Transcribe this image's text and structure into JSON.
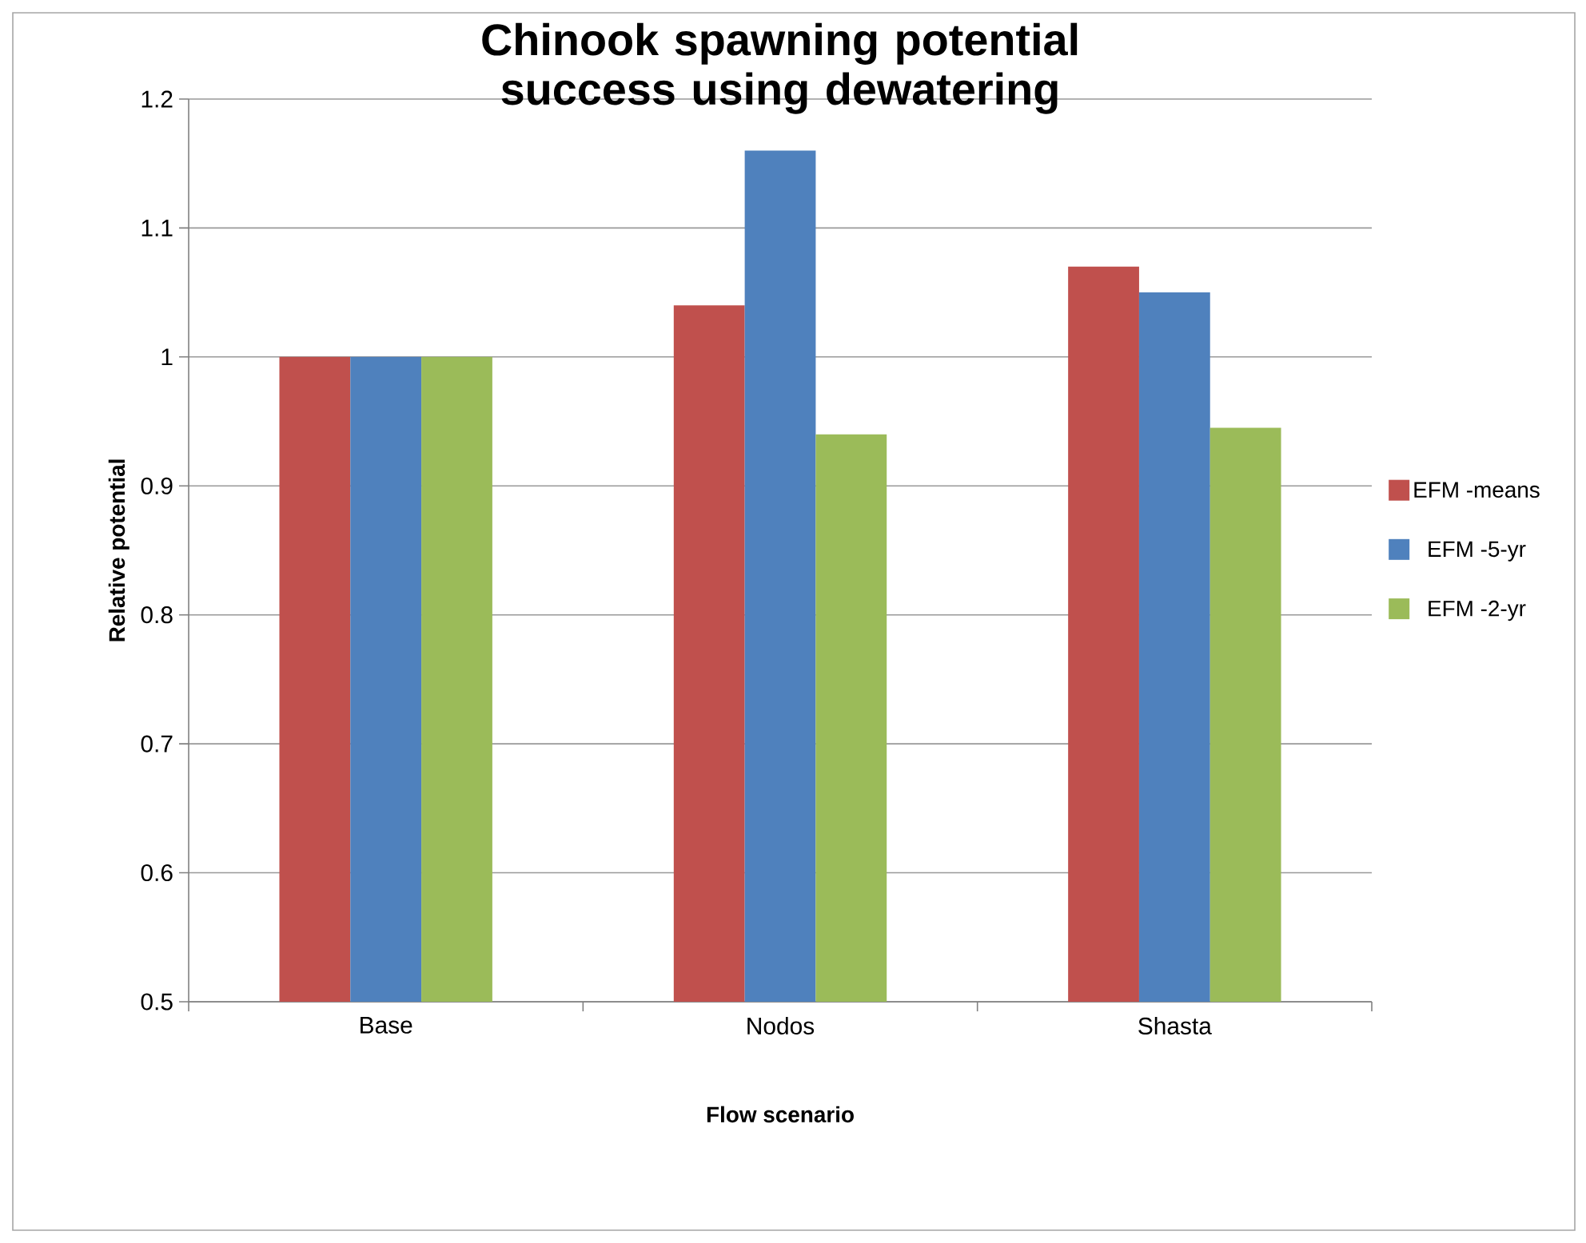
{
  "chart_data": {
    "type": "bar",
    "title": "Chinook spawning potential  success using dewatering",
    "xlabel": "Flow scenario",
    "ylabel": "Relative potential",
    "categories": [
      "Base",
      "Nodos",
      "Shasta"
    ],
    "series": [
      {
        "name": "EFM -means",
        "color": "#c0504d",
        "values": [
          1.0,
          1.04,
          1.07
        ]
      },
      {
        "name": "EFM -5-yr",
        "color": "#4f81bd",
        "values": [
          1.0,
          1.16,
          1.05
        ]
      },
      {
        "name": "EFM -2-yr",
        "color": "#9bbb59",
        "values": [
          1.0,
          0.94,
          0.945
        ]
      }
    ],
    "ylim": [
      0.5,
      1.2
    ],
    "yticks": [
      0.5,
      0.6,
      0.7,
      0.8,
      0.9,
      1,
      1.1,
      1.2
    ],
    "grid": "y",
    "legend": "right"
  }
}
